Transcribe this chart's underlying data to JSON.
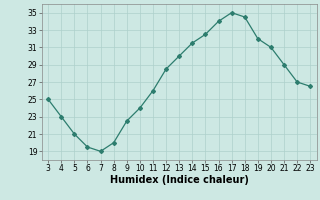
{
  "x": [
    3,
    4,
    5,
    6,
    7,
    8,
    9,
    10,
    11,
    12,
    13,
    14,
    15,
    16,
    17,
    18,
    19,
    20,
    21,
    22,
    23
  ],
  "y": [
    25,
    23,
    21,
    19.5,
    19,
    20,
    22.5,
    24,
    26,
    28.5,
    30,
    31.5,
    32.5,
    34,
    35,
    34.5,
    32,
    31,
    29,
    27,
    26.5
  ],
  "xlabel": "Humidex (Indice chaleur)",
  "xlim": [
    2.5,
    23.5
  ],
  "ylim": [
    18,
    36
  ],
  "yticks": [
    19,
    21,
    23,
    25,
    27,
    29,
    31,
    33,
    35
  ],
  "xticks": [
    3,
    4,
    5,
    6,
    7,
    8,
    9,
    10,
    11,
    12,
    13,
    14,
    15,
    16,
    17,
    18,
    19,
    20,
    21,
    22,
    23
  ],
  "line_color": "#2d7d6e",
  "marker": "D",
  "marker_size": 2.0,
  "bg_color": "#cde8e3",
  "grid_color": "#aed0cb",
  "tick_fontsize": 5.5,
  "xlabel_fontsize": 7.0,
  "line_width": 0.9
}
